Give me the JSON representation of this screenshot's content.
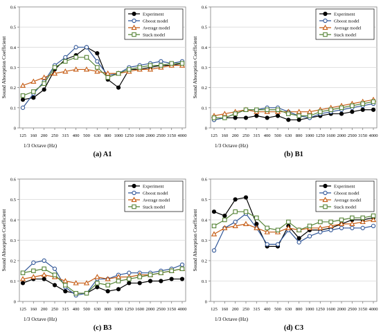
{
  "series_names": [
    "Experiment",
    "Gboost model",
    "Average model",
    "Stack model"
  ],
  "series_colors": [
    "#000000",
    "#2f5597",
    "#c55a11",
    "#548235"
  ],
  "chart_data": [
    {
      "type": "line",
      "panel_label": "(a) A1",
      "xlabel": "1/3 Octave (Hz)",
      "ylabel": "Sound Absorption Coefficient",
      "categories": [
        "125",
        "160",
        "200",
        "250",
        "315",
        "400",
        "500",
        "630",
        "800",
        "1000",
        "1250",
        "1600",
        "2000",
        "2500",
        "3150",
        "4000"
      ],
      "y_ticks": [
        "0",
        "0.1",
        "0.2",
        "0.3",
        "0.4",
        "0.5",
        "0.6"
      ],
      "ylim": [
        0,
        0.6
      ],
      "grid": "horizontal",
      "legend": "top-right",
      "series": [
        {
          "name": "Experiment",
          "values": [
            0.14,
            0.15,
            0.19,
            0.29,
            0.34,
            0.36,
            0.4,
            0.37,
            0.24,
            0.2,
            0.29,
            0.29,
            0.3,
            0.31,
            0.31,
            0.32
          ]
        },
        {
          "name": "Gboost model",
          "values": [
            0.1,
            0.17,
            0.23,
            0.31,
            0.35,
            0.4,
            0.4,
            0.33,
            0.26,
            0.27,
            0.3,
            0.31,
            0.32,
            0.33,
            0.32,
            0.33
          ]
        },
        {
          "name": "Average model",
          "values": [
            0.21,
            0.23,
            0.25,
            0.27,
            0.28,
            0.29,
            0.29,
            0.28,
            0.27,
            0.27,
            0.28,
            0.29,
            0.29,
            0.3,
            0.31,
            0.31
          ]
        },
        {
          "name": "Stack model",
          "values": [
            0.16,
            0.18,
            0.22,
            0.3,
            0.33,
            0.35,
            0.35,
            0.3,
            0.25,
            0.27,
            0.29,
            0.3,
            0.31,
            0.31,
            0.32,
            0.32
          ]
        }
      ]
    },
    {
      "type": "line",
      "panel_label": "(b) B1",
      "xlabel": "1/3 Octave (Hz)",
      "ylabel": "Sound Absorption Coefficient",
      "categories": [
        "125",
        "160",
        "200",
        "250",
        "315",
        "400",
        "500",
        "630",
        "800",
        "1000",
        "1250",
        "1600",
        "2000",
        "2500",
        "3150",
        "4000"
      ],
      "y_ticks": [
        "0",
        "0.1",
        "0.2",
        "0.3",
        "0.4",
        "0.5",
        "0.6"
      ],
      "ylim": [
        0,
        0.6
      ],
      "grid": "horizontal",
      "legend": "top-right",
      "series": [
        {
          "name": "Experiment",
          "values": [
            0.04,
            0.05,
            0.05,
            0.05,
            0.06,
            0.05,
            0.06,
            0.04,
            0.04,
            0.05,
            0.06,
            0.07,
            0.07,
            0.08,
            0.09,
            0.09
          ]
        },
        {
          "name": "Gboost model",
          "values": [
            0.04,
            0.05,
            0.07,
            0.09,
            0.09,
            0.1,
            0.1,
            0.08,
            0.06,
            0.05,
            0.07,
            0.08,
            0.09,
            0.1,
            0.11,
            0.12
          ]
        },
        {
          "name": "Average model",
          "values": [
            0.06,
            0.07,
            0.08,
            0.09,
            0.08,
            0.08,
            0.08,
            0.08,
            0.08,
            0.08,
            0.09,
            0.1,
            0.11,
            0.12,
            0.13,
            0.14
          ]
        },
        {
          "name": "Stack model",
          "values": [
            0.05,
            0.05,
            0.07,
            0.09,
            0.09,
            0.09,
            0.09,
            0.07,
            0.06,
            0.06,
            0.08,
            0.09,
            0.1,
            0.11,
            0.12,
            0.13
          ]
        }
      ]
    },
    {
      "type": "line",
      "panel_label": "(c) B3",
      "xlabel": "1/3 Octave (Hz)",
      "ylabel": "Sound Absorption Coefficient",
      "categories": [
        "125",
        "160",
        "200",
        "250",
        "315",
        "400",
        "500",
        "630",
        "800",
        "1000",
        "1250",
        "1600",
        "2000",
        "2500",
        "3150",
        "4000"
      ],
      "y_ticks": [
        "0",
        "0.1",
        "0.2",
        "0.3",
        "0.4",
        "0.5",
        "0.6"
      ],
      "ylim": [
        0,
        0.6
      ],
      "grid": "horizontal",
      "legend": "top-right",
      "series": [
        {
          "name": "Experiment",
          "values": [
            0.09,
            0.11,
            0.11,
            0.08,
            0.05,
            0.04,
            0.04,
            0.07,
            0.05,
            0.06,
            0.09,
            0.09,
            0.1,
            0.1,
            0.11,
            0.11
          ]
        },
        {
          "name": "Gboost model",
          "values": [
            0.14,
            0.19,
            0.2,
            0.16,
            0.07,
            0.03,
            0.04,
            0.11,
            0.11,
            0.13,
            0.14,
            0.14,
            0.14,
            0.15,
            0.16,
            0.18
          ]
        },
        {
          "name": "Average model",
          "values": [
            0.11,
            0.12,
            0.13,
            0.12,
            0.1,
            0.09,
            0.09,
            0.12,
            0.11,
            0.12,
            0.12,
            0.13,
            0.13,
            0.14,
            0.15,
            0.16
          ]
        },
        {
          "name": "Stack model",
          "values": [
            0.14,
            0.15,
            0.16,
            0.13,
            0.08,
            0.04,
            0.04,
            0.09,
            0.08,
            0.1,
            0.11,
            0.12,
            0.13,
            0.14,
            0.15,
            0.16
          ]
        }
      ]
    },
    {
      "type": "line",
      "panel_label": "(d) C3",
      "xlabel": "1/3 Octave (Hz)",
      "ylabel": "Sound Absorption Coefficient",
      "categories": [
        "125",
        "160",
        "200",
        "250",
        "315",
        "400",
        "500",
        "630",
        "800",
        "1000",
        "1250",
        "1600",
        "2000",
        "2500",
        "3150",
        "4000"
      ],
      "y_ticks": [
        "0",
        "0.1",
        "0.2",
        "0.3",
        "0.4",
        "0.5",
        "0.6"
      ],
      "ylim": [
        0,
        0.6
      ],
      "grid": "horizontal",
      "legend": "top-right",
      "series": [
        {
          "name": "Experiment",
          "values": [
            0.44,
            0.42,
            0.5,
            0.51,
            0.38,
            0.27,
            0.27,
            0.37,
            0.31,
            0.35,
            0.35,
            0.36,
            0.38,
            0.4,
            0.4,
            0.41
          ]
        },
        {
          "name": "Gboost model",
          "values": [
            0.25,
            0.36,
            0.39,
            0.43,
            0.36,
            0.28,
            0.28,
            0.35,
            0.29,
            0.32,
            0.34,
            0.35,
            0.36,
            0.36,
            0.36,
            0.37
          ]
        },
        {
          "name": "Average model",
          "values": [
            0.33,
            0.36,
            0.37,
            0.38,
            0.36,
            0.34,
            0.34,
            0.36,
            0.35,
            0.36,
            0.36,
            0.37,
            0.38,
            0.38,
            0.39,
            0.4
          ]
        },
        {
          "name": "Stack model",
          "values": [
            0.37,
            0.4,
            0.44,
            0.44,
            0.41,
            0.36,
            0.35,
            0.39,
            0.35,
            0.37,
            0.39,
            0.39,
            0.4,
            0.41,
            0.41,
            0.42
          ]
        }
      ]
    }
  ]
}
